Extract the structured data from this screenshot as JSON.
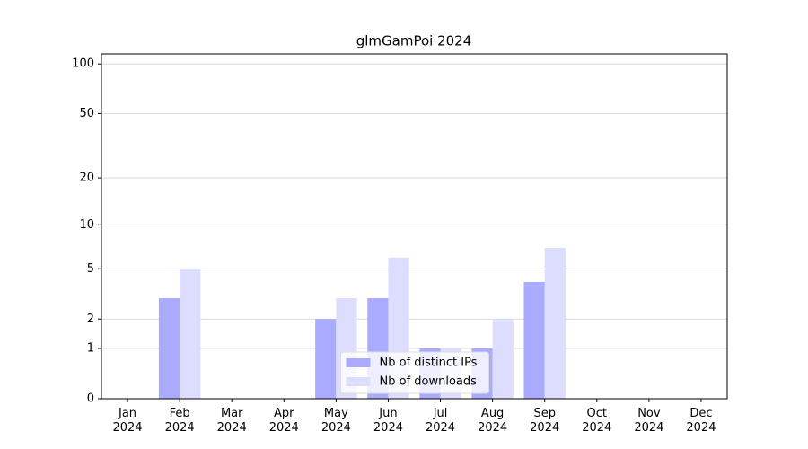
{
  "chart_data": {
    "type": "bar",
    "title": "glmGamPoi 2024",
    "categories": [
      "Jan\n2024",
      "Feb\n2024",
      "Mar\n2024",
      "Apr\n2024",
      "May\n2024",
      "Jun\n2024",
      "Jul\n2024",
      "Aug\n2024",
      "Sep\n2024",
      "Oct\n2024",
      "Nov\n2024",
      "Dec\n2024"
    ],
    "series": [
      {
        "name": "Nb of distinct IPs",
        "color": "#aaaaff",
        "values": [
          0,
          3,
          0,
          0,
          2,
          3,
          1,
          1,
          4,
          0,
          0,
          0
        ]
      },
      {
        "name": "Nb of downloads",
        "color": "#ddddff",
        "values": [
          0,
          5,
          0,
          0,
          3,
          6,
          1,
          2,
          7,
          0,
          0,
          0
        ]
      }
    ],
    "yscale": "log1p",
    "ylim": [
      0,
      115
    ],
    "yticks": [
      0,
      1,
      2,
      5,
      10,
      20,
      50,
      100
    ],
    "grid": true,
    "legend": "lower center"
  }
}
